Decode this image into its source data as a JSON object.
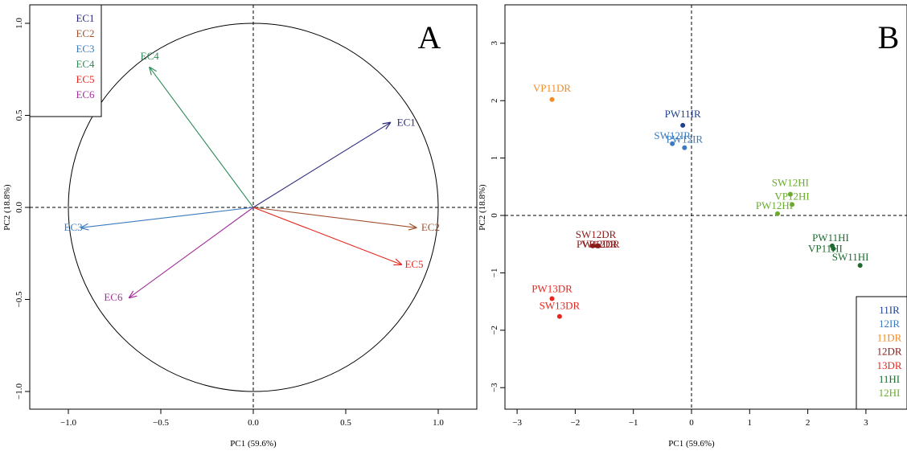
{
  "chart_data": [
    {
      "type": "scatter",
      "panel_letter": "A",
      "xlabel": "PC1 (59.6%)",
      "ylabel": "PC2 (18.8%)",
      "xlim": [
        -1.05,
        1.05
      ],
      "ylim": [
        -1.1,
        1.1
      ],
      "xticks": [
        -1.0,
        -0.5,
        0.0,
        0.5,
        1.0
      ],
      "xtick_labels": [
        "−1.0",
        "−0.5",
        "0.0",
        "0.5",
        "1.0"
      ],
      "yticks": [
        -1.0,
        -0.5,
        0.0,
        0.5,
        1.0
      ],
      "ytick_labels": [
        "−1.0",
        "−0.5",
        "0.0",
        "0.5",
        "1.0"
      ],
      "grid": false,
      "reference_lines": [
        0,
        0
      ],
      "unit_circle": true,
      "legend_position": "top-left",
      "vectors": [
        {
          "name": "EC1",
          "x": 0.74,
          "y": 0.46,
          "color": "#2b2a7d"
        },
        {
          "name": "EC2",
          "x": 0.88,
          "y": -0.11,
          "color": "#a0522d"
        },
        {
          "name": "EC3",
          "x": -0.93,
          "y": -0.11,
          "color": "#3a7abf"
        },
        {
          "name": "EC4",
          "x": -0.56,
          "y": 0.76,
          "color": "#2e8b57"
        },
        {
          "name": "EC5",
          "x": 0.8,
          "y": -0.31,
          "color": "#e8261e"
        },
        {
          "name": "EC6",
          "x": -0.67,
          "y": -0.49,
          "color": "#a0309a"
        }
      ]
    },
    {
      "type": "scatter",
      "panel_letter": "B",
      "xlabel": "PC1 (59.6%)",
      "ylabel": "PC2 (18.8%)",
      "xlim": [
        -3.2,
        3.6
      ],
      "ylim": [
        -3.3,
        3.5
      ],
      "xticks": [
        -3,
        -2,
        -1,
        0,
        1,
        2,
        3
      ],
      "xtick_labels": [
        "−3",
        "−2",
        "−1",
        "0",
        "1",
        "2",
        "3"
      ],
      "yticks": [
        -3,
        -2,
        -1,
        0,
        1,
        2,
        3
      ],
      "ytick_labels": [
        "−3",
        "−2",
        "−1",
        "0",
        "1",
        "2",
        "3"
      ],
      "grid": false,
      "reference_lines": [
        0,
        0
      ],
      "legend_position": "bottom-right",
      "groups": [
        {
          "name": "11IR",
          "color": "#1f3f8f"
        },
        {
          "name": "12IR",
          "color": "#3a7abf"
        },
        {
          "name": "11DR",
          "color": "#f28c28"
        },
        {
          "name": "12DR",
          "color": "#8b1a1a"
        },
        {
          "name": "13DR",
          "color": "#e8261e"
        },
        {
          "name": "11HI",
          "color": "#1f6b2e"
        },
        {
          "name": "12HI",
          "color": "#6aab2e"
        }
      ],
      "points": [
        {
          "label": "VP11DR",
          "group": "11DR",
          "x": -2.4,
          "y": 2.02
        },
        {
          "label": "PW11IR",
          "group": "11IR",
          "x": -0.15,
          "y": 1.57
        },
        {
          "label": "SW12IR",
          "group": "12IR",
          "x": -0.33,
          "y": 1.25
        },
        {
          "label": "PW12IR",
          "group": "12IR",
          "x": -0.12,
          "y": 1.18
        },
        {
          "label": "SW12HI",
          "group": "12HI",
          "x": 1.7,
          "y": 0.37
        },
        {
          "label": "VP12HI",
          "group": "12HI",
          "x": 1.73,
          "y": 0.19
        },
        {
          "label": "PW12HI",
          "group": "12HI",
          "x": 1.48,
          "y": 0.03
        },
        {
          "label": "SW12DR",
          "group": "12DR",
          "x": -1.7,
          "y": -0.53
        },
        {
          "label": "PW12DR",
          "group": "12DR",
          "x": -1.6,
          "y": -0.53
        },
        {
          "label": "VP12DR",
          "group": "12DR",
          "x": -1.62,
          "y": -0.53
        },
        {
          "label": "PW11HI",
          "group": "11HI",
          "x": 2.42,
          "y": -0.53
        },
        {
          "label": "VP11HI",
          "group": "11HI",
          "x": 2.44,
          "y": -0.58
        },
        {
          "label": "SW11HI",
          "group": "11HI",
          "x": 2.9,
          "y": -0.87
        },
        {
          "label": "PW13DR",
          "group": "13DR",
          "x": -2.4,
          "y": -1.45
        },
        {
          "label": "SW13DR",
          "group": "13DR",
          "x": -2.27,
          "y": -1.76
        }
      ]
    }
  ]
}
